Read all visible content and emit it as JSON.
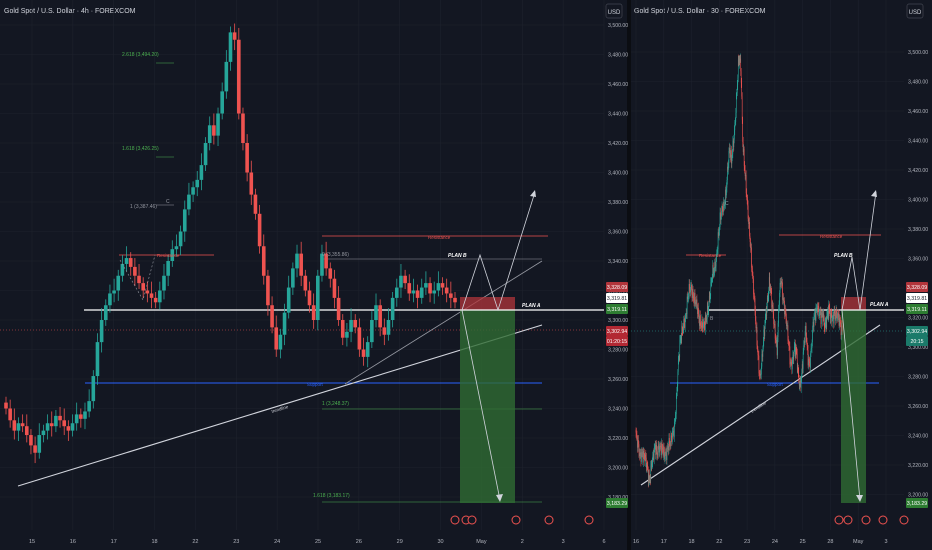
{
  "left_panel": {
    "title": "Gold Spot / U.S. Dollar · 4h · FOREXCOM",
    "currency": "USD",
    "x_ticks": [
      "15",
      "16",
      "17",
      "18",
      "22",
      "23",
      "24",
      "25",
      "26",
      "29",
      "30",
      "May",
      "2",
      "3",
      "6"
    ],
    "y_ticks": [
      "3,500.00",
      "3,480.00",
      "3,460.00",
      "3,440.00",
      "3,420.00",
      "3,400.00",
      "3,380.00",
      "3,360.00",
      "3,340.00",
      "3,320.00",
      "3,300.00",
      "3,280.00",
      "3,260.00",
      "3,240.00",
      "3,220.00",
      "3,200.00",
      "3,180.00"
    ],
    "price_tags": [
      {
        "text": "3,328.09",
        "color": "#b2353b"
      },
      {
        "text": "3,319.81",
        "color": "#ffffff"
      },
      {
        "text": "3,319.11",
        "color": "#2e7d32"
      },
      {
        "text": "3,302.94",
        "color": "#b22833"
      },
      {
        "text": "01:20:15",
        "color": "#b22833"
      },
      {
        "text": "3,183.29",
        "color": "#2e7d32"
      }
    ],
    "labels": {
      "fib_2618": "2.618 (3,494.20)",
      "fib_1618": "1.618 (3,426.25)",
      "fib_1a": "1 (3,387.46)",
      "c": "C",
      "resistance_a": "Resistance",
      "resistance_b": "Resistance",
      "fib_0": "0 (3,355.86)",
      "plan_b": "PLAN B",
      "plan_a": "PLAN A",
      "support": "Support",
      "trendline": "trendline",
      "fib_1b": "1 (3,248.37)",
      "fib_1618b": "1.618 (3,183.17)"
    }
  },
  "right_panel": {
    "title": "Gold Spot / U.S. Dollar · 30 · FOREXCOM",
    "currency": "USD",
    "x_ticks": [
      "16",
      "17",
      "18",
      "22",
      "23",
      "24",
      "25",
      "28",
      "May",
      "3"
    ],
    "y_ticks": [
      "3,500.00",
      "3,480.00",
      "3,460.00",
      "3,440.00",
      "3,420.00",
      "3,400.00",
      "3,380.00",
      "3,360.00",
      "3,340.00",
      "3,320.00",
      "3,300.00",
      "3,280.00",
      "3,260.00",
      "3,240.00",
      "3,220.00",
      "3,200.00"
    ],
    "price_tags": [
      {
        "text": "3,328.09",
        "color": "#b2353b"
      },
      {
        "text": "3,319.81",
        "color": "#ffffff"
      },
      {
        "text": "3,319.11",
        "color": "#2e7d32"
      },
      {
        "text": "3,302.94",
        "color": "#1b7a6a"
      },
      {
        "text": "20:15",
        "color": "#1b7a6a"
      },
      {
        "text": "3,183.29",
        "color": "#2e7d32"
      }
    ],
    "labels": {
      "c": "C",
      "b": "B",
      "resistance_a": "Resistance",
      "resistance_b": "Resistance",
      "plan_b": "PLAN B",
      "plan_a": "PLAN A",
      "support": "Support",
      "trendline": "trendline"
    }
  },
  "colors": {
    "bg": "#131722",
    "up": "#26a69a",
    "down": "#ef5350",
    "grid": "#1e222d",
    "axis_text": "#b2b5be"
  },
  "chart_data": [
    {
      "type": "candlestick",
      "title": "Gold Spot / U.S. Dollar · 4h · FOREXCOM",
      "ylim": [
        3170,
        3515
      ],
      "approx_close": [
        3240,
        3232,
        3225,
        3230,
        3228,
        3222,
        3215,
        3210,
        3222,
        3225,
        3230,
        3228,
        3235,
        3232,
        3228,
        3225,
        3230,
        3236,
        3233,
        3238,
        3245,
        3262,
        3285,
        3300,
        3310,
        3318,
        3320,
        3330,
        3338,
        3342,
        3336,
        3330,
        3325,
        3320,
        3318,
        3315,
        3312,
        3320,
        3330,
        3340,
        3348,
        3350,
        3360,
        3375,
        3385,
        3390,
        3395,
        3405,
        3420,
        3432,
        3425,
        3440,
        3455,
        3475,
        3495,
        3490,
        3440,
        3420,
        3400,
        3385,
        3372,
        3350,
        3330,
        3310,
        3295,
        3280,
        3290,
        3305,
        3322,
        3335,
        3345,
        3330,
        3320,
        3310,
        3300,
        3330,
        3345,
        3335,
        3328,
        3315,
        3300,
        3288,
        3292,
        3300,
        3295,
        3280,
        3275,
        3285,
        3300,
        3310,
        3295,
        3290,
        3300,
        3315,
        3322,
        3330,
        3325,
        3318,
        3320,
        3315,
        3322,
        3325,
        3318,
        3320,
        3325,
        3322,
        3318,
        3315,
        3312
      ]
    },
    {
      "type": "candlestick",
      "title": "Gold Spot / U.S. Dollar · 30 · FOREXCOM",
      "ylim": [
        3185,
        3510
      ]
    }
  ]
}
